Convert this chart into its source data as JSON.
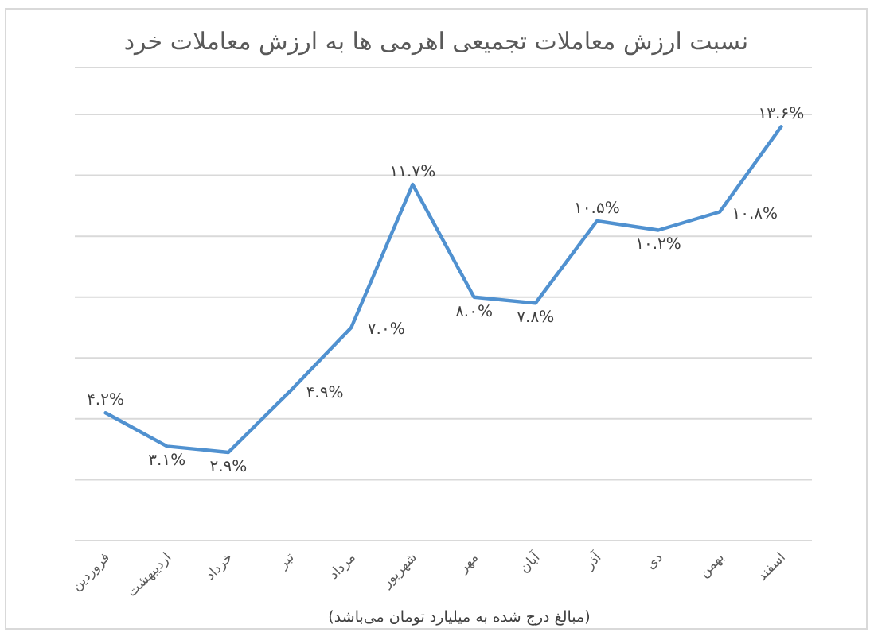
{
  "chart_data": {
    "type": "line",
    "title": "نسبت ارزش معاملات تجمیعی اهرمی ها به ارزش معاملات خرد",
    "categories": [
      "فروردین",
      "اردیبهشت",
      "خرداد",
      "تیر",
      "مرداد",
      "شهریور",
      "مهر",
      "آبان",
      "آذر",
      "دی",
      "بهمن",
      "اسفند"
    ],
    "series": [
      {
        "color": "#5091d0",
        "values": [
          4.2,
          3.1,
          2.9,
          4.9,
          7.0,
          11.7,
          8.0,
          7.8,
          10.5,
          10.2,
          10.8,
          13.6
        ],
        "value_labels": [
          "۴.۲%",
          "۳.۱%",
          "۲.۹%",
          "۴.۹%",
          "۷.۰%",
          "۱۱.۷%",
          "۸.۰%",
          "۷.۸%",
          "۱۰.۵%",
          "۱۰.۲%",
          "۱۰.۸%",
          "۱۳.۶%"
        ]
      }
    ],
    "ylim": [
      0,
      14
    ],
    "yticks": [
      {
        "value": 0,
        "label": null
      },
      {
        "value": 2,
        "label": null
      },
      {
        "value": 4,
        "label": null
      },
      {
        "value": 6,
        "label": null
      },
      {
        "value": 8,
        "label": null
      },
      {
        "value": 10,
        "label": null
      },
      {
        "value": 12,
        "label": null
      },
      {
        "value": 14,
        "label": null
      }
    ],
    "grid": "y",
    "marker": "none",
    "line_style": "solid",
    "tick_labels": "x",
    "annotations": [
      "(مبالغ درج شده به میلیارد تومان می‌باشد)"
    ]
  }
}
